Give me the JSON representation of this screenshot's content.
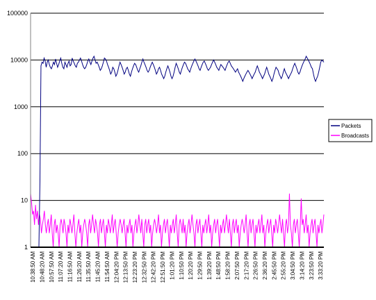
{
  "chart_data": {
    "type": "line",
    "title": "",
    "xlabel": "",
    "ylabel": "",
    "y_scale": "log",
    "ylim": [
      1,
      100000
    ],
    "y_ticks": [
      "1",
      "10",
      "100",
      "1000",
      "10000",
      "100000"
    ],
    "grid": "horizontal",
    "legend_position": "right",
    "x_tick_labels": [
      "10:38:50 AM",
      "10:48:20 AM",
      "10:57:50 AM",
      "11:07:20 AM",
      "11:16:50 AM",
      "11:26:20 AM",
      "11:35:50 AM",
      "11:45:20 AM",
      "11:54:50 AM",
      "12:04:20 PM",
      "12:13:50 PM",
      "12:23:20 PM",
      "12:32:50 PM",
      "12:42:20 PM",
      "12:51:50 PM",
      "1:01:20 PM",
      "1:10:50 PM",
      "1:20:20 PM",
      "1:29:50 PM",
      "1:39:20 PM",
      "1:48:50 PM",
      "1:58:20 PM",
      "2:07:50 PM",
      "2:17:20 PM",
      "2:26:50 PM",
      "2:36:20 PM",
      "2:45:50 PM",
      "2:55:20 PM",
      "3:04:50 PM",
      "3:14:20 PM",
      "3:23:50 PM",
      "3:33:20 PM"
    ],
    "series": [
      {
        "name": "Packets",
        "color": "#000080",
        "values": [
          0,
          0,
          0,
          0,
          0,
          0,
          0,
          0,
          0,
          25,
          7500,
          9000,
          8500,
          11000,
          9500,
          7000,
          9000,
          10000,
          8000,
          7000,
          6500,
          7500,
          9000,
          8000,
          10500,
          8500,
          7000,
          8000,
          9500,
          11000,
          8500,
          7000,
          6500,
          9000,
          8000,
          7000,
          8500,
          9500,
          7500,
          8000,
          11000,
          9500,
          8500,
          7500,
          7000,
          8500,
          9000,
          10000,
          11000,
          9500,
          8000,
          7000,
          6500,
          7000,
          8000,
          9500,
          10500,
          9000,
          8000,
          9500,
          11000,
          12000,
          10000,
          8500,
          9000,
          8000,
          7000,
          6000,
          6500,
          7500,
          9000,
          11000,
          10500,
          9500,
          8000,
          7000,
          6000,
          5000,
          5500,
          7000,
          6500,
          5500,
          4500,
          5000,
          6000,
          7500,
          9000,
          8000,
          7000,
          6000,
          5000,
          5500,
          6500,
          7000,
          6000,
          5000,
          4500,
          5500,
          6500,
          7500,
          8500,
          8000,
          7000,
          6000,
          5500,
          6500,
          7500,
          9000,
          10500,
          9000,
          8000,
          7000,
          6000,
          5500,
          6000,
          7000,
          8000,
          9000,
          8000,
          7000,
          6000,
          5000,
          5500,
          6500,
          7000,
          6000,
          5000,
          4500,
          4000,
          4500,
          5500,
          6500,
          7500,
          6500,
          5500,
          4500,
          4000,
          4500,
          5500,
          7000,
          8500,
          7500,
          6500,
          5500,
          5000,
          6000,
          7000,
          8000,
          9000,
          8500,
          7500,
          6500,
          6000,
          5500,
          6500,
          7500,
          8500,
          9500,
          10500,
          9500,
          8500,
          7500,
          6500,
          6000,
          7000,
          8000,
          9000,
          9500,
          8500,
          7500,
          6500,
          6000,
          6500,
          7000,
          8000,
          9000,
          10000,
          9000,
          8000,
          7000,
          6500,
          6000,
          7000,
          8000,
          7500,
          7000,
          6500,
          6000,
          7000,
          8000,
          9000,
          9500,
          8500,
          7500,
          7000,
          6500,
          6000,
          5500,
          6000,
          6500,
          5500,
          5000,
          4500,
          4000,
          3500,
          4000,
          4500,
          5000,
          5500,
          6000,
          5500,
          5000,
          4500,
          4000,
          4500,
          5000,
          5500,
          6500,
          7500,
          6500,
          5500,
          5000,
          4500,
          4000,
          4500,
          5000,
          6000,
          7000,
          6000,
          5000,
          4500,
          4000,
          3500,
          4000,
          5000,
          6000,
          7000,
          6500,
          6000,
          5000,
          4500,
          4000,
          4500,
          5500,
          6500,
          5500,
          5000,
          4500,
          4000,
          4500,
          5000,
          5500,
          6500,
          7500,
          8500,
          7500,
          6500,
          5500,
          5000,
          5500,
          6500,
          7500,
          8500,
          9500,
          10500,
          12000,
          11000,
          10000,
          9000,
          8000,
          7000,
          6500,
          5000,
          4000,
          3500,
          4000,
          4500,
          5500,
          7000,
          9000,
          10000,
          9500,
          9000
        ]
      },
      {
        "name": "Broadcasts",
        "color": "#ff00ff",
        "values": [
          14,
          9,
          5,
          6,
          3,
          8,
          4,
          6,
          3,
          5,
          4,
          2,
          3,
          4,
          6,
          3,
          2,
          3,
          4,
          2,
          3,
          5,
          2,
          1,
          3,
          4,
          2,
          3,
          2,
          1,
          3,
          4,
          3,
          2,
          4,
          3,
          2,
          1,
          3,
          2,
          4,
          3,
          2,
          3,
          5,
          2,
          1,
          2,
          3,
          4,
          2,
          3,
          1,
          2,
          3,
          4,
          3,
          2,
          1,
          3,
          4,
          2,
          3,
          5,
          3,
          2,
          4,
          3,
          2,
          1,
          3,
          4,
          2,
          3,
          4,
          2,
          1,
          3,
          2,
          4,
          3,
          2,
          3,
          5,
          2,
          3,
          4,
          2,
          1,
          2,
          3,
          4,
          3,
          2,
          3,
          4,
          2,
          1,
          3,
          2,
          3,
          4,
          2,
          3,
          1,
          2,
          3,
          4,
          2,
          3,
          5,
          3,
          2,
          4,
          2,
          1,
          3,
          4,
          2,
          3,
          4,
          2,
          3,
          1,
          2,
          3,
          4,
          3,
          2,
          3,
          5,
          2,
          3,
          1,
          2,
          3,
          4,
          2,
          3,
          4,
          2,
          1,
          3,
          2,
          3,
          4,
          2,
          3,
          5,
          2,
          1,
          3,
          4,
          3,
          2,
          4,
          2,
          3,
          1,
          2,
          3,
          4,
          2,
          3,
          5,
          3,
          2,
          1,
          3,
          4,
          2,
          3,
          4,
          2,
          1,
          3,
          2,
          3,
          4,
          2,
          3,
          5,
          2,
          3,
          1,
          2,
          3,
          4,
          2,
          3,
          4,
          2,
          1,
          3,
          2,
          3,
          4,
          2,
          3,
          5,
          3,
          2,
          4,
          2,
          1,
          3,
          4,
          2,
          3,
          4,
          2,
          3,
          1,
          2,
          3,
          4,
          3,
          2,
          3,
          5,
          2,
          1,
          3,
          4,
          2,
          3,
          4,
          2,
          1,
          3,
          2,
          3,
          4,
          2,
          3,
          5,
          2,
          3,
          1,
          2,
          3,
          4,
          2,
          3,
          4,
          2,
          1,
          3,
          2,
          4,
          3,
          2,
          3,
          5,
          3,
          2,
          4,
          2,
          1,
          3,
          4,
          2,
          3,
          14,
          3,
          2,
          1,
          3,
          4,
          2,
          3,
          4,
          2,
          1,
          3,
          11,
          3,
          4,
          2,
          3,
          5,
          2,
          3,
          1,
          2,
          3,
          4,
          2,
          3,
          4,
          2,
          1,
          3,
          2,
          3,
          4,
          2,
          3,
          5
        ]
      }
    ]
  }
}
